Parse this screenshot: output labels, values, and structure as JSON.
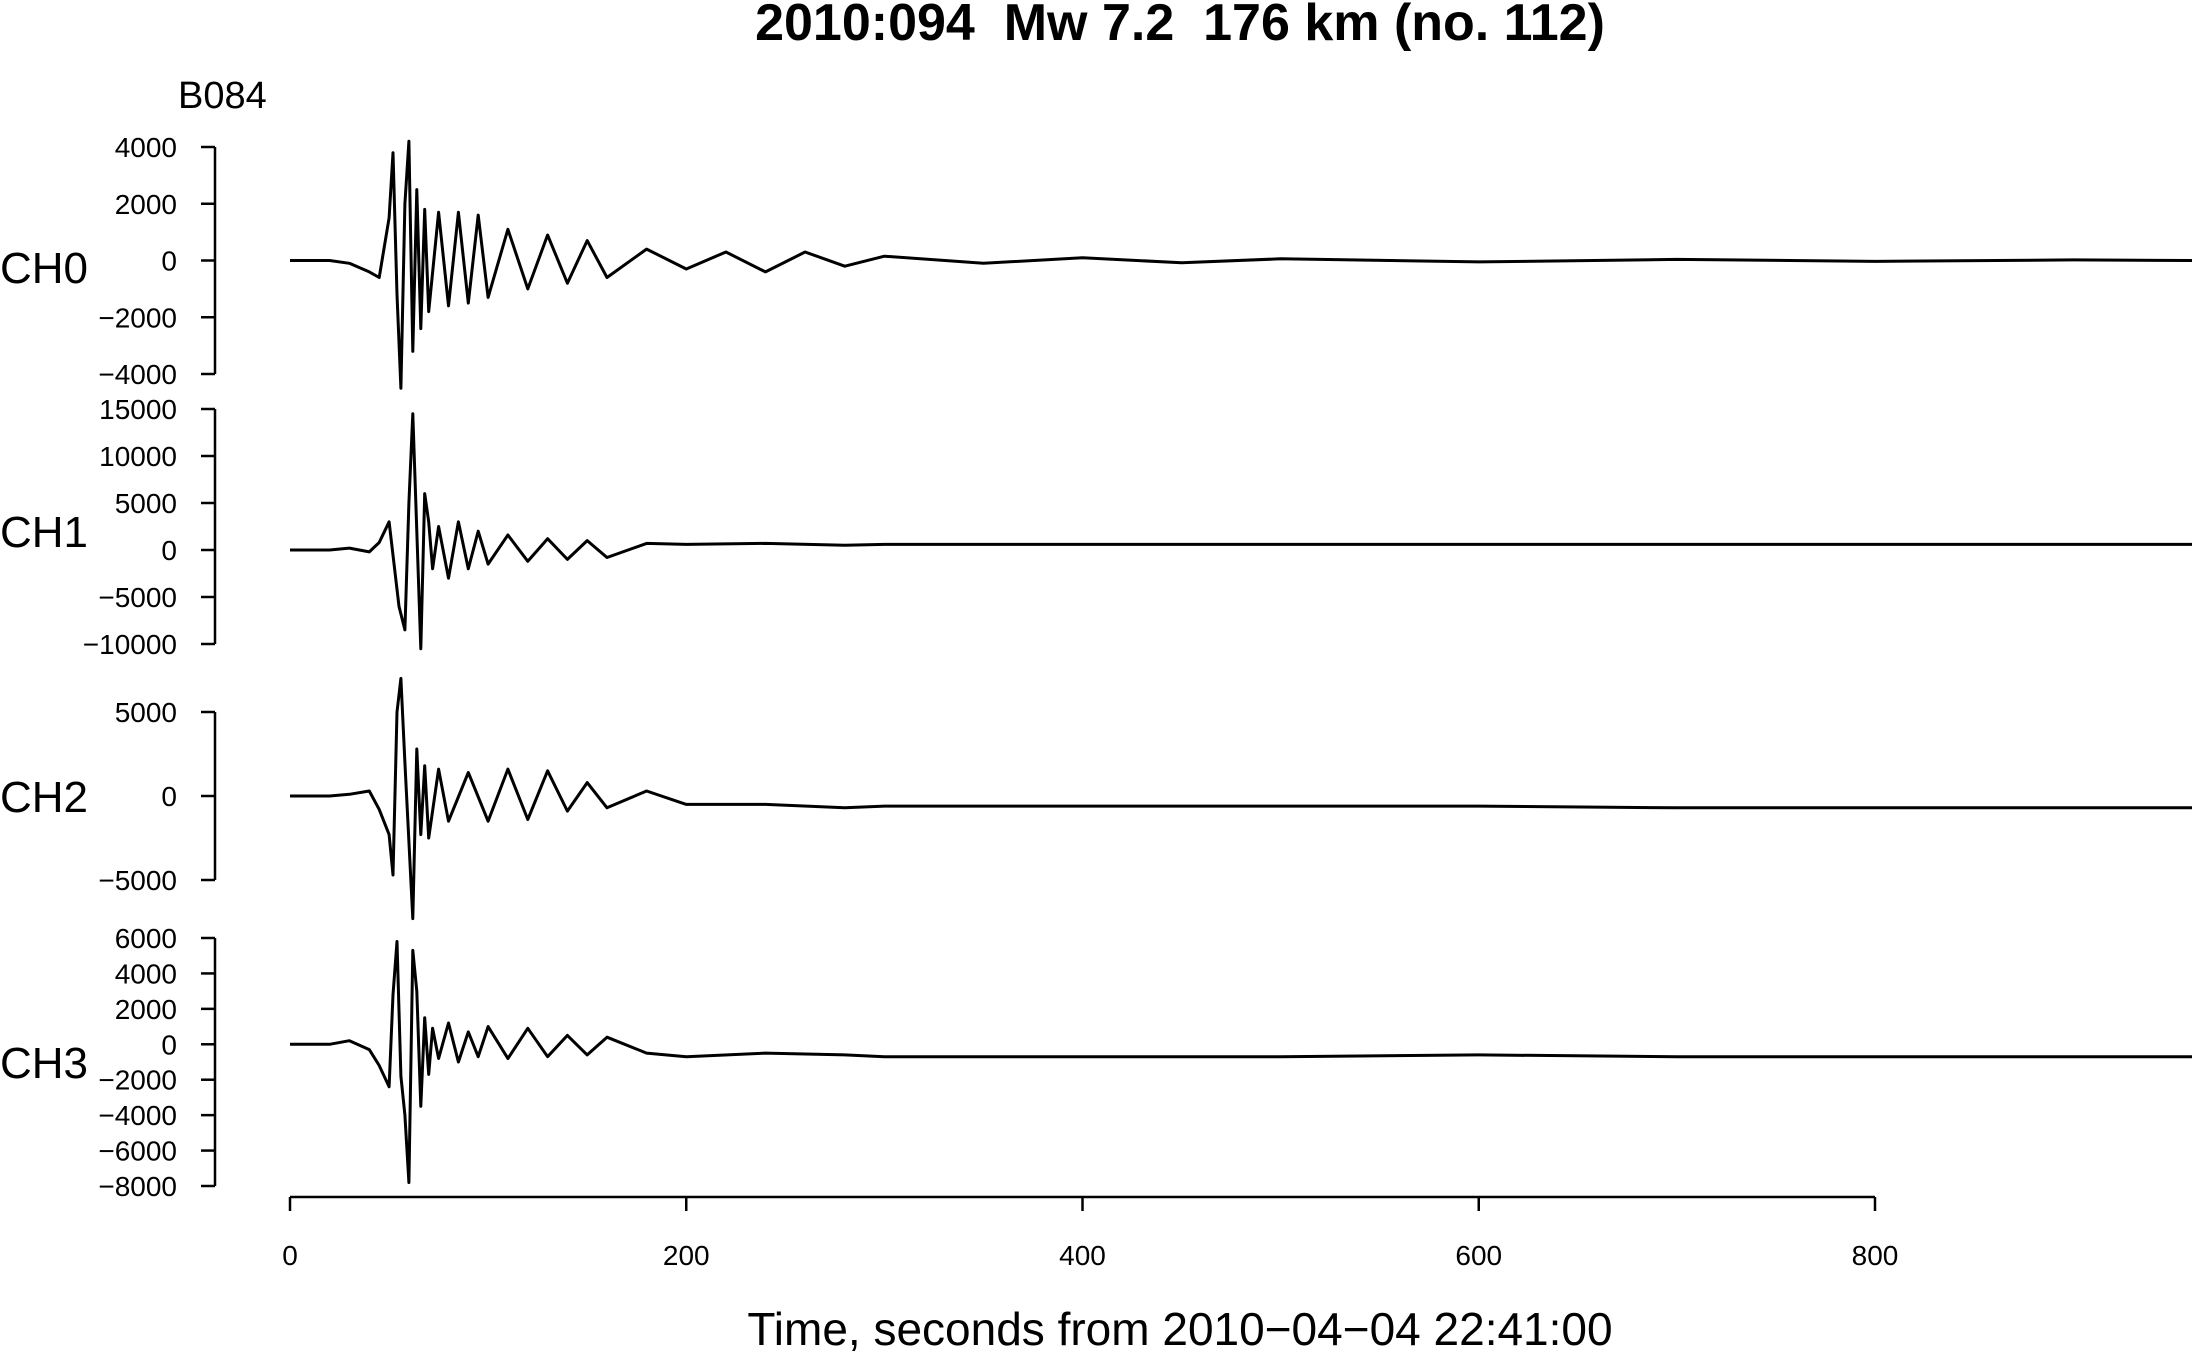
{
  "chart_data": {
    "type": "line",
    "title": "2010:094  Mw 7.2  176 km (no. 112)",
    "station": "B084",
    "xlabel": "Time, seconds from 2010−04−04 22:41:00",
    "xlim": [
      0,
      960
    ],
    "xticks": [
      0,
      200,
      400,
      600,
      800
    ],
    "xtick_labels": [
      "0",
      "200",
      "400",
      "600",
      "800"
    ],
    "panels": [
      {
        "name": "CH0",
        "ylim": [
          -4000,
          4000
        ],
        "yticks": [
          -4000,
          -2000,
          0,
          2000,
          4000
        ],
        "ytick_labels": [
          "−4000",
          "−2000",
          "0",
          "2000",
          "4000"
        ],
        "x": [
          0,
          20,
          30,
          40,
          45,
          50,
          52,
          54,
          56,
          58,
          60,
          62,
          64,
          66,
          68,
          70,
          75,
          80,
          85,
          90,
          95,
          100,
          110,
          120,
          130,
          140,
          150,
          160,
          180,
          200,
          220,
          240,
          260,
          280,
          300,
          350,
          400,
          450,
          500,
          600,
          700,
          800,
          900,
          960
        ],
        "y": [
          0,
          0,
          -100,
          -400,
          -600,
          1500,
          3800,
          -1200,
          -4500,
          2000,
          4200,
          -3200,
          2500,
          -2400,
          1800,
          -1800,
          1700,
          -1600,
          1700,
          -1500,
          1600,
          -1300,
          1100,
          -1000,
          900,
          -800,
          700,
          -600,
          400,
          -300,
          300,
          -400,
          300,
          -200,
          150,
          -100,
          100,
          -80,
          60,
          -50,
          40,
          -30,
          20,
          0
        ]
      },
      {
        "name": "CH1",
        "ylim": [
          -10000,
          15000
        ],
        "yticks": [
          -10000,
          -5000,
          0,
          5000,
          10000,
          15000
        ],
        "ytick_labels": [
          "−10000",
          "−5000",
          "0",
          "5000",
          "10000",
          "15000"
        ],
        "x": [
          0,
          20,
          30,
          40,
          45,
          50,
          55,
          58,
          60,
          62,
          64,
          66,
          68,
          70,
          72,
          75,
          80,
          85,
          90,
          95,
          100,
          110,
          120,
          130,
          140,
          150,
          160,
          180,
          200,
          240,
          280,
          300,
          400,
          500,
          600,
          700,
          800,
          900,
          960
        ],
        "y": [
          0,
          0,
          200,
          -200,
          800,
          3000,
          -6000,
          -8500,
          5000,
          14500,
          2000,
          -10500,
          6000,
          3000,
          -2000,
          2500,
          -3000,
          3000,
          -2000,
          2000,
          -1500,
          1600,
          -1200,
          1200,
          -1000,
          1000,
          -800,
          700,
          600,
          700,
          500,
          600,
          600,
          600,
          600,
          600,
          600,
          600,
          600
        ]
      },
      {
        "name": "CH2",
        "ylim": [
          -5000,
          5000
        ],
        "yticks": [
          -5000,
          0,
          5000
        ],
        "ytick_labels": [
          "−5000",
          "0",
          "5000"
        ],
        "x": [
          0,
          20,
          30,
          40,
          45,
          50,
          52,
          54,
          56,
          58,
          60,
          62,
          64,
          66,
          68,
          70,
          75,
          80,
          90,
          100,
          110,
          120,
          130,
          140,
          150,
          160,
          180,
          200,
          240,
          280,
          300,
          400,
          500,
          600,
          700,
          800,
          900,
          960
        ],
        "y": [
          0,
          0,
          100,
          300,
          -800,
          -2300,
          -4700,
          5000,
          7000,
          2000,
          -2700,
          -7300,
          2800,
          -2300,
          1800,
          -2500,
          1600,
          -1500,
          1400,
          -1500,
          1600,
          -1400,
          1500,
          -900,
          800,
          -700,
          300,
          -500,
          -500,
          -700,
          -600,
          -600,
          -600,
          -600,
          -700,
          -700,
          -700,
          -700
        ]
      },
      {
        "name": "CH3",
        "ylim": [
          -8000,
          6000
        ],
        "yticks": [
          -8000,
          -6000,
          -4000,
          -2000,
          0,
          2000,
          4000,
          6000
        ],
        "ytick_labels": [
          "−8000",
          "−6000",
          "−4000",
          "−2000",
          "0",
          "2000",
          "4000",
          "6000"
        ],
        "x": [
          0,
          20,
          30,
          40,
          45,
          50,
          52,
          54,
          56,
          58,
          60,
          62,
          64,
          66,
          68,
          70,
          72,
          75,
          80,
          85,
          90,
          95,
          100,
          110,
          120,
          130,
          140,
          150,
          160,
          180,
          200,
          240,
          280,
          300,
          400,
          500,
          600,
          700,
          800,
          900,
          960
        ],
        "y": [
          0,
          0,
          200,
          -300,
          -1200,
          -2400,
          2800,
          5800,
          -1800,
          -4000,
          -7800,
          5300,
          3000,
          -3500,
          1500,
          -1700,
          900,
          -800,
          1200,
          -1000,
          700,
          -700,
          1000,
          -800,
          900,
          -700,
          500,
          -600,
          400,
          -500,
          -700,
          -500,
          -600,
          -700,
          -700,
          -700,
          -600,
          -700,
          -700,
          -700,
          -700
        ]
      }
    ]
  }
}
